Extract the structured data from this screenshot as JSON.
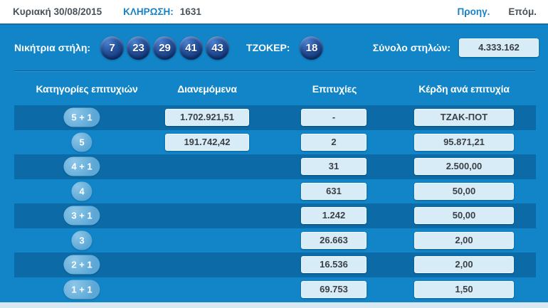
{
  "topbar": {
    "date": "Κυριακή 30/08/2015",
    "draw_label": "ΚΛΗΡΩΣΗ:",
    "draw_number": "1631",
    "prev_label": "Προηγ.",
    "next_label": "Επόμ."
  },
  "banner": {
    "winning_label": "Νικήτρια στήλη:",
    "numbers": [
      "7",
      "23",
      "29",
      "41",
      "43"
    ],
    "joker_label": "ΤΖΟΚΕΡ:",
    "joker_number": "18",
    "total_label": "Σύνολο στηλών:",
    "total_value": "4.333.162"
  },
  "table": {
    "headers": [
      "Κατηγορίες επιτυχιών",
      "Διανεμόμενα",
      "Επιτυχίες",
      "Κέρδη ανά επιτυχία"
    ],
    "rows": [
      {
        "category": "5 + 1",
        "distributed": "1.702.921,51",
        "wins": "-",
        "prize": "ΤΖΑΚ-ΠΟΤ",
        "shaded": true
      },
      {
        "category": "5",
        "distributed": "191.742,42",
        "wins": "2",
        "prize": "95.871,21",
        "shaded": false
      },
      {
        "category": "4 + 1",
        "distributed": "",
        "wins": "31",
        "prize": "2.500,00",
        "shaded": true
      },
      {
        "category": "4",
        "distributed": "",
        "wins": "631",
        "prize": "50,00",
        "shaded": false
      },
      {
        "category": "3 + 1",
        "distributed": "",
        "wins": "1.242",
        "prize": "50,00",
        "shaded": true
      },
      {
        "category": "3",
        "distributed": "",
        "wins": "26.663",
        "prize": "2,00",
        "shaded": false
      },
      {
        "category": "2 + 1",
        "distributed": "",
        "wins": "16.536",
        "prize": "2,00",
        "shaded": true
      },
      {
        "category": "1 + 1",
        "distributed": "",
        "wins": "69.753",
        "prize": "1,50",
        "shaded": false
      }
    ]
  },
  "colors": {
    "panel_blue": "#1185c7",
    "row_dark_blue": "#0c6ba7",
    "accent_link_blue": "#1583c5",
    "dark_text": "#47525b",
    "value_box_bg": "#d8ecf8",
    "badge_blue": "#5ca7d6",
    "ball_dark_blue": "#123a7e",
    "bottom_strip": "#d7e8f3",
    "topbar_border": "#0f6fa6"
  }
}
